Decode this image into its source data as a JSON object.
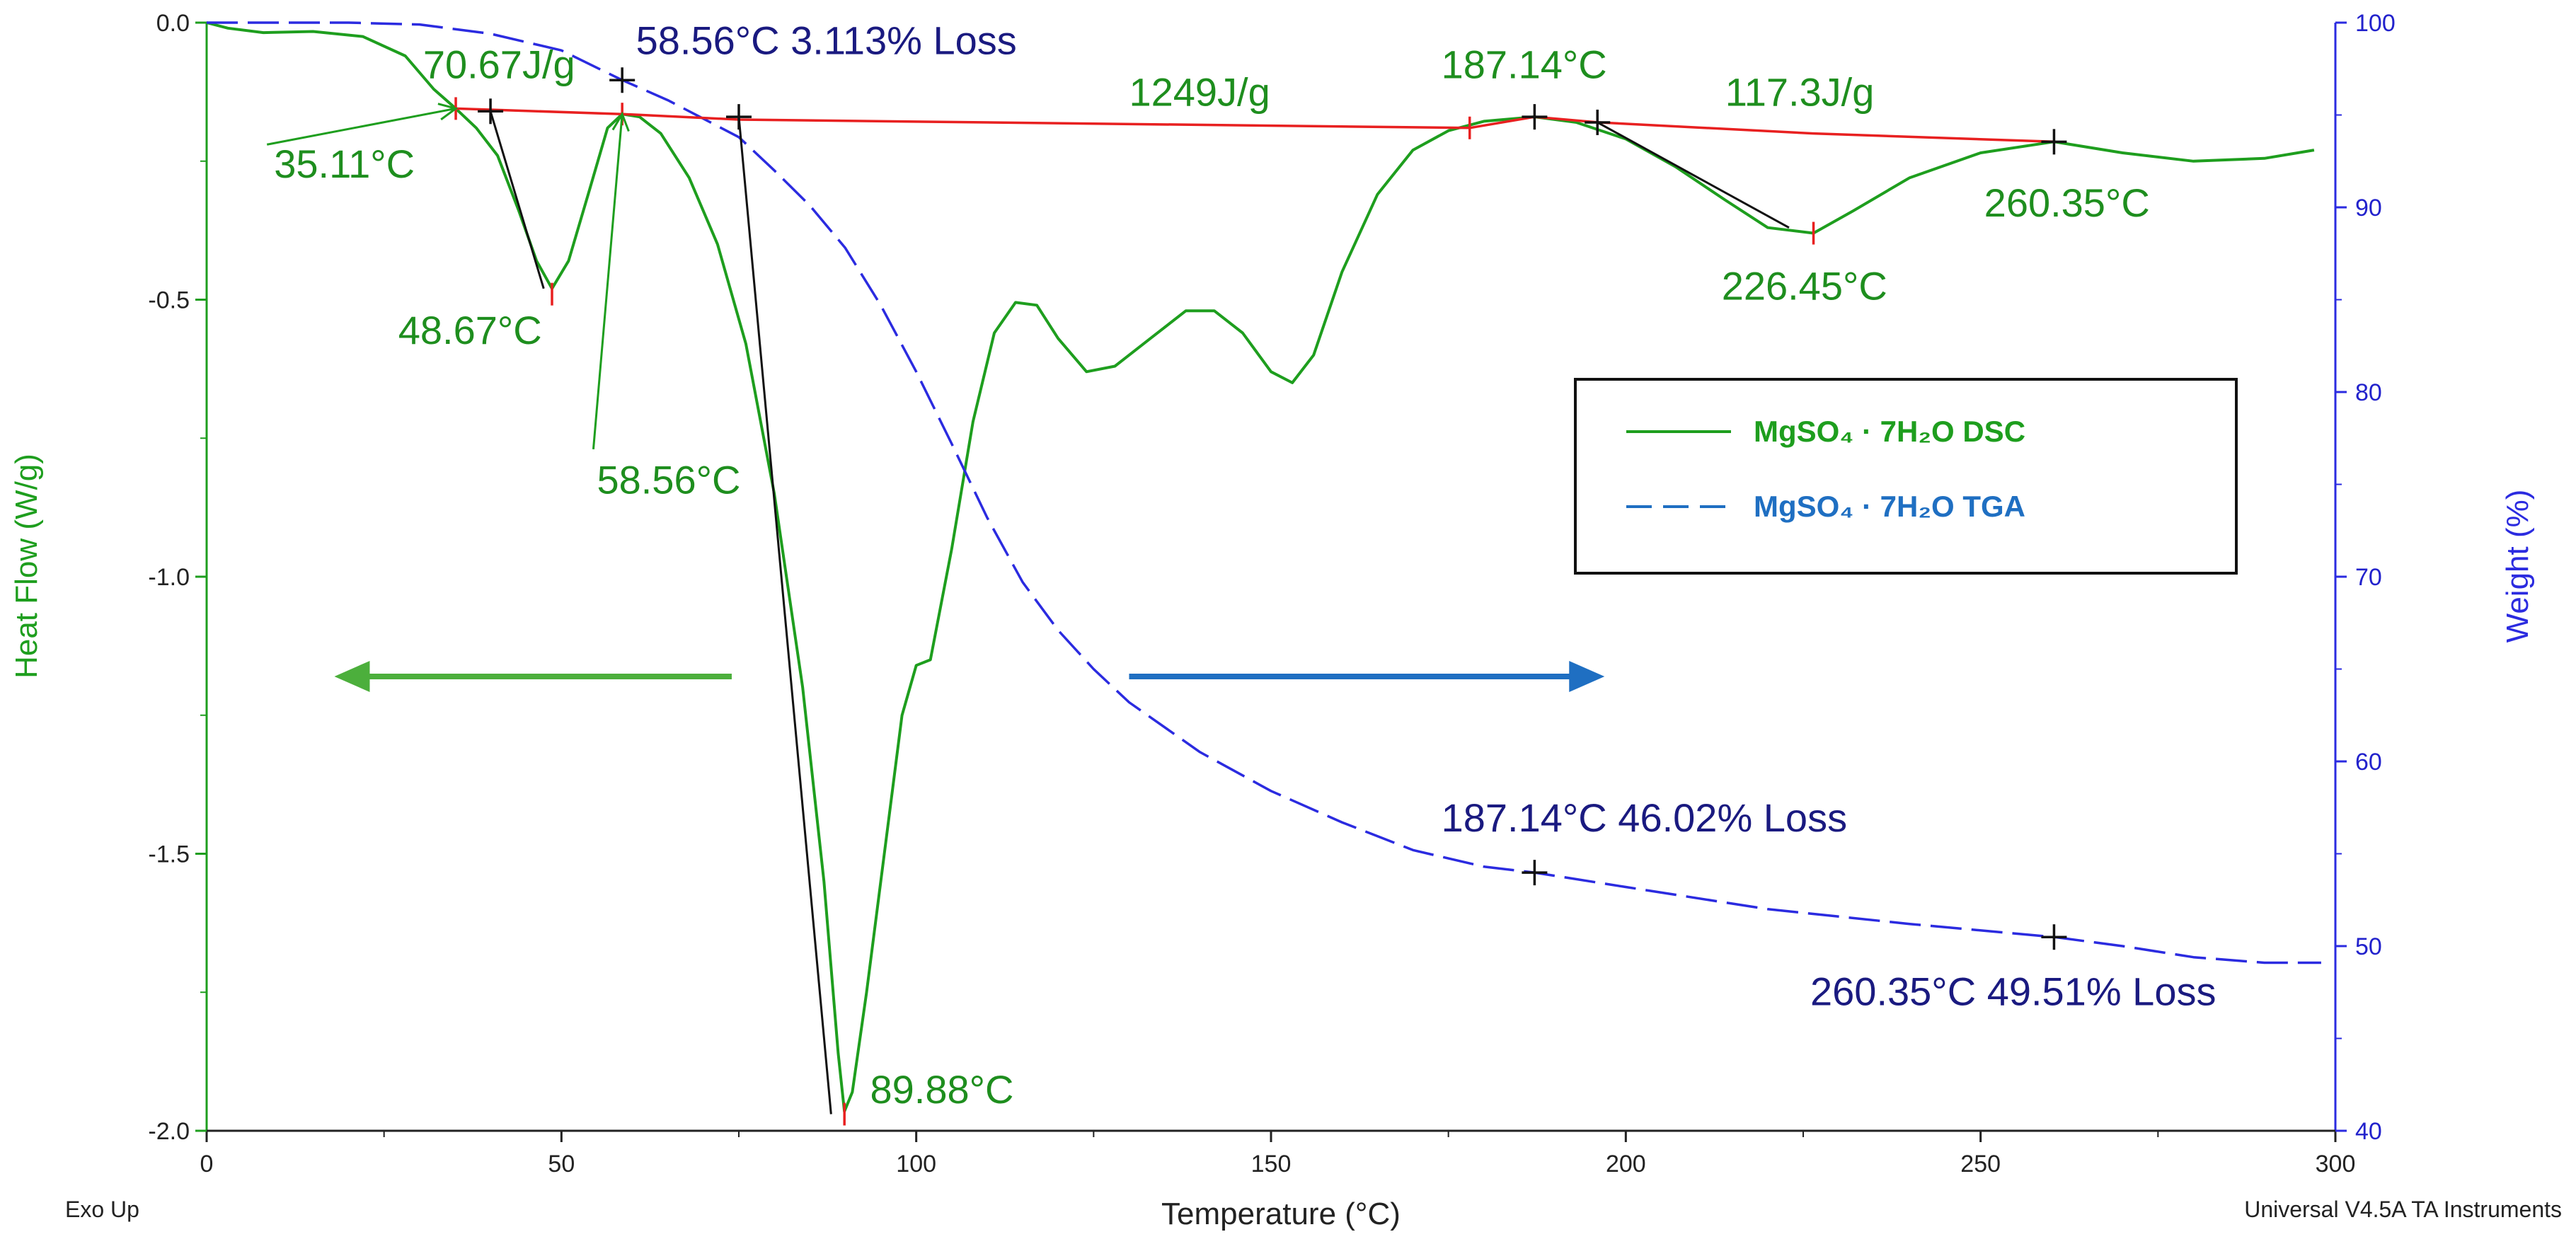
{
  "chart_data": {
    "type": "line",
    "title": "",
    "footer_left": "Exo Up",
    "footer_right": "Universal V4.5A TA Instruments",
    "xlabel": "Temperature (°C)",
    "ylabel_left": "Heat Flow (W/g)",
    "ylabel_right": "Weight (%)",
    "xlim": [
      0,
      300
    ],
    "ylim_left": [
      -2.0,
      0.0
    ],
    "ylim_right": [
      40,
      100
    ],
    "x_ticks": [
      "0",
      "50",
      "100",
      "150",
      "200",
      "250",
      "300"
    ],
    "y_left_ticks": [
      "0.0",
      "-0.5",
      "-1.0",
      "-1.5",
      "-2.0"
    ],
    "y_right_ticks": [
      "100",
      "90",
      "80",
      "70",
      "60",
      "50",
      "40"
    ],
    "colors": {
      "dsc": "#1e9e1e",
      "tga": "#2b2be0",
      "baseline": "#e82020",
      "tangent": "#111111",
      "anno_green": "#1e8e1e",
      "anno_navy": "#1a1a80",
      "arrow_green": "#4caf3c",
      "arrow_blue": "#1f6fc2"
    },
    "series": [
      {
        "name": "MgSO₄ · 7H₂O DSC",
        "axis": "left",
        "style": "solid",
        "points": [
          [
            0,
            0.0
          ],
          [
            3,
            -0.01
          ],
          [
            8,
            -0.018
          ],
          [
            15,
            -0.016
          ],
          [
            22,
            -0.025
          ],
          [
            28,
            -0.06
          ],
          [
            32,
            -0.12
          ],
          [
            35.11,
            -0.155
          ],
          [
            38,
            -0.19
          ],
          [
            41,
            -0.24
          ],
          [
            44,
            -0.34
          ],
          [
            46.5,
            -0.43
          ],
          [
            48.67,
            -0.48
          ],
          [
            51,
            -0.43
          ],
          [
            54,
            -0.3
          ],
          [
            56.5,
            -0.19
          ],
          [
            58.56,
            -0.165
          ],
          [
            61,
            -0.17
          ],
          [
            64,
            -0.2
          ],
          [
            68,
            -0.28
          ],
          [
            72,
            -0.4
          ],
          [
            76,
            -0.58
          ],
          [
            80,
            -0.85
          ],
          [
            84,
            -1.2
          ],
          [
            87,
            -1.55
          ],
          [
            89,
            -1.86
          ],
          [
            89.88,
            -1.965
          ],
          [
            91,
            -1.93
          ],
          [
            93,
            -1.75
          ],
          [
            96,
            -1.45
          ],
          [
            98,
            -1.25
          ],
          [
            100,
            -1.16
          ],
          [
            102,
            -1.15
          ],
          [
            105,
            -0.95
          ],
          [
            108,
            -0.72
          ],
          [
            111,
            -0.56
          ],
          [
            114,
            -0.505
          ],
          [
            117,
            -0.51
          ],
          [
            120,
            -0.57
          ],
          [
            124,
            -0.63
          ],
          [
            128,
            -0.62
          ],
          [
            133,
            -0.57
          ],
          [
            138,
            -0.52
          ],
          [
            142,
            -0.52
          ],
          [
            146,
            -0.56
          ],
          [
            150,
            -0.63
          ],
          [
            153,
            -0.65
          ],
          [
            156,
            -0.6
          ],
          [
            160,
            -0.45
          ],
          [
            165,
            -0.31
          ],
          [
            170,
            -0.23
          ],
          [
            175,
            -0.195
          ],
          [
            180,
            -0.178
          ],
          [
            187.14,
            -0.17
          ],
          [
            193,
            -0.18
          ],
          [
            200,
            -0.21
          ],
          [
            207,
            -0.26
          ],
          [
            214,
            -0.32
          ],
          [
            220,
            -0.37
          ],
          [
            226.45,
            -0.38
          ],
          [
            232,
            -0.34
          ],
          [
            240,
            -0.28
          ],
          [
            250,
            -0.235
          ],
          [
            260.35,
            -0.215
          ],
          [
            270,
            -0.235
          ],
          [
            280,
            -0.25
          ],
          [
            290,
            -0.245
          ],
          [
            297,
            -0.23
          ]
        ]
      },
      {
        "name": "MgSO₄ · 7H₂O TGA",
        "axis": "right",
        "style": "dashed",
        "points": [
          [
            0,
            100
          ],
          [
            20,
            100
          ],
          [
            30,
            99.9
          ],
          [
            40,
            99.4
          ],
          [
            50,
            98.5
          ],
          [
            58.56,
            96.887
          ],
          [
            65,
            95.8
          ],
          [
            70,
            94.8
          ],
          [
            75,
            93.8
          ],
          [
            80,
            92.0
          ],
          [
            85,
            90.1
          ],
          [
            90,
            87.8
          ],
          [
            95,
            84.7
          ],
          [
            100,
            81.1
          ],
          [
            105,
            77.2
          ],
          [
            110,
            73.2
          ],
          [
            115,
            69.7
          ],
          [
            120,
            67.1
          ],
          [
            125,
            65.0
          ],
          [
            130,
            63.2
          ],
          [
            140,
            60.5
          ],
          [
            150,
            58.4
          ],
          [
            160,
            56.7
          ],
          [
            170,
            55.2
          ],
          [
            180,
            54.3
          ],
          [
            187.14,
            53.98
          ],
          [
            200,
            53.2
          ],
          [
            220,
            52.0
          ],
          [
            240,
            51.2
          ],
          [
            260.35,
            50.49
          ],
          [
            270,
            50.0
          ],
          [
            280,
            49.4
          ],
          [
            290,
            49.1
          ],
          [
            298,
            49.1
          ]
        ]
      }
    ],
    "baseline_points": [
      [
        35.11,
        -0.155
      ],
      [
        58.56,
        -0.165
      ],
      [
        75,
        -0.175
      ],
      [
        178,
        -0.19
      ],
      [
        187.14,
        -0.17
      ],
      [
        196,
        -0.18
      ],
      [
        226.45,
        -0.2
      ],
      [
        260.35,
        -0.215
      ]
    ],
    "tangent_lines": [
      [
        [
          40,
          -0.16
        ],
        [
          47.5,
          -0.48
        ]
      ],
      [
        [
          75,
          -0.17
        ],
        [
          88,
          -1.97
        ]
      ],
      [
        [
          196,
          -0.18
        ],
        [
          223,
          -0.37
        ]
      ]
    ],
    "markers": [
      {
        "x": 35.11,
        "y": -0.155,
        "axis": "left",
        "kind": "red"
      },
      {
        "x": 48.67,
        "y": -0.49,
        "axis": "left",
        "kind": "red"
      },
      {
        "x": 58.56,
        "y": -0.165,
        "axis": "left",
        "kind": "red"
      },
      {
        "x": 89.88,
        "y": -1.97,
        "axis": "left",
        "kind": "red"
      },
      {
        "x": 178,
        "y": -0.19,
        "axis": "left",
        "kind": "red"
      },
      {
        "x": 226.45,
        "y": -0.38,
        "axis": "left",
        "kind": "red"
      },
      {
        "x": 40,
        "y": -0.16,
        "axis": "left",
        "kind": "black"
      },
      {
        "x": 75,
        "y": -0.17,
        "axis": "left",
        "kind": "black"
      },
      {
        "x": 187.14,
        "y": -0.17,
        "axis": "left",
        "kind": "black"
      },
      {
        "x": 196,
        "y": -0.18,
        "axis": "left",
        "kind": "black"
      },
      {
        "x": 260.35,
        "y": -0.215,
        "axis": "left",
        "kind": "black"
      },
      {
        "x": 58.56,
        "y": 96.887,
        "axis": "right",
        "kind": "black"
      },
      {
        "x": 187.14,
        "y": 53.98,
        "axis": "right",
        "kind": "black"
      },
      {
        "x": 260.35,
        "y": 50.49,
        "axis": "right",
        "kind": "black"
      }
    ],
    "annotations": [
      {
        "text": "70.67J/g",
        "x": 30.5,
        "y": -0.1,
        "axis": "left",
        "color": "green"
      },
      {
        "text": "35.11°C",
        "x": 9.5,
        "y": -0.28,
        "axis": "left",
        "color": "green"
      },
      {
        "text": "48.67°C",
        "x": 27,
        "y": -0.58,
        "axis": "left",
        "color": "green"
      },
      {
        "text": "58.56°C",
        "x": 55,
        "y": -0.85,
        "axis": "left",
        "color": "green"
      },
      {
        "text": "89.88°C",
        "x": 93.5,
        "y": -1.95,
        "axis": "left",
        "color": "green"
      },
      {
        "text": "1249J/g",
        "x": 130,
        "y": -0.15,
        "axis": "left",
        "color": "green"
      },
      {
        "text": "187.14°C",
        "x": 174,
        "y": -0.1,
        "axis": "left",
        "color": "green"
      },
      {
        "text": "117.3J/g",
        "x": 214,
        "y": -0.15,
        "axis": "left",
        "color": "green"
      },
      {
        "text": "226.45°C",
        "x": 213.5,
        "y": -0.5,
        "axis": "left",
        "color": "green"
      },
      {
        "text": "260.35°C",
        "x": 250.5,
        "y": -0.35,
        "axis": "left",
        "color": "green"
      },
      {
        "text": "58.56°C 3.113% Loss",
        "x": 60.5,
        "y": 98.3,
        "axis": "right",
        "color": "navy"
      },
      {
        "text": "187.14°C 46.02% Loss",
        "x": 174,
        "y": 56.2,
        "axis": "right",
        "color": "navy"
      },
      {
        "text": "260.35°C 49.51% Loss",
        "x": 226,
        "y": 46.8,
        "axis": "right",
        "color": "navy"
      }
    ],
    "annotation_leaders": [
      {
        "from": [
          8.5,
          -0.22
        ],
        "to": [
          35.11,
          -0.155
        ]
      },
      {
        "from": [
          54.5,
          -0.77
        ],
        "to": [
          58.56,
          -0.165
        ]
      }
    ],
    "direction_arrows": [
      {
        "from": [
          74,
          -1.18
        ],
        "to": [
          18,
          -1.18
        ],
        "color": "green"
      },
      {
        "from": [
          130,
          -1.18
        ],
        "to": [
          197,
          -1.18
        ],
        "color": "blue"
      }
    ],
    "legend": {
      "position": "center-right",
      "entries": [
        {
          "label": "MgSO₄ · 7H₂O DSC",
          "style": "solid",
          "color": "green"
        },
        {
          "label": "MgSO₄ · 7H₂O TGA",
          "style": "dashed",
          "color": "blue"
        }
      ]
    }
  }
}
